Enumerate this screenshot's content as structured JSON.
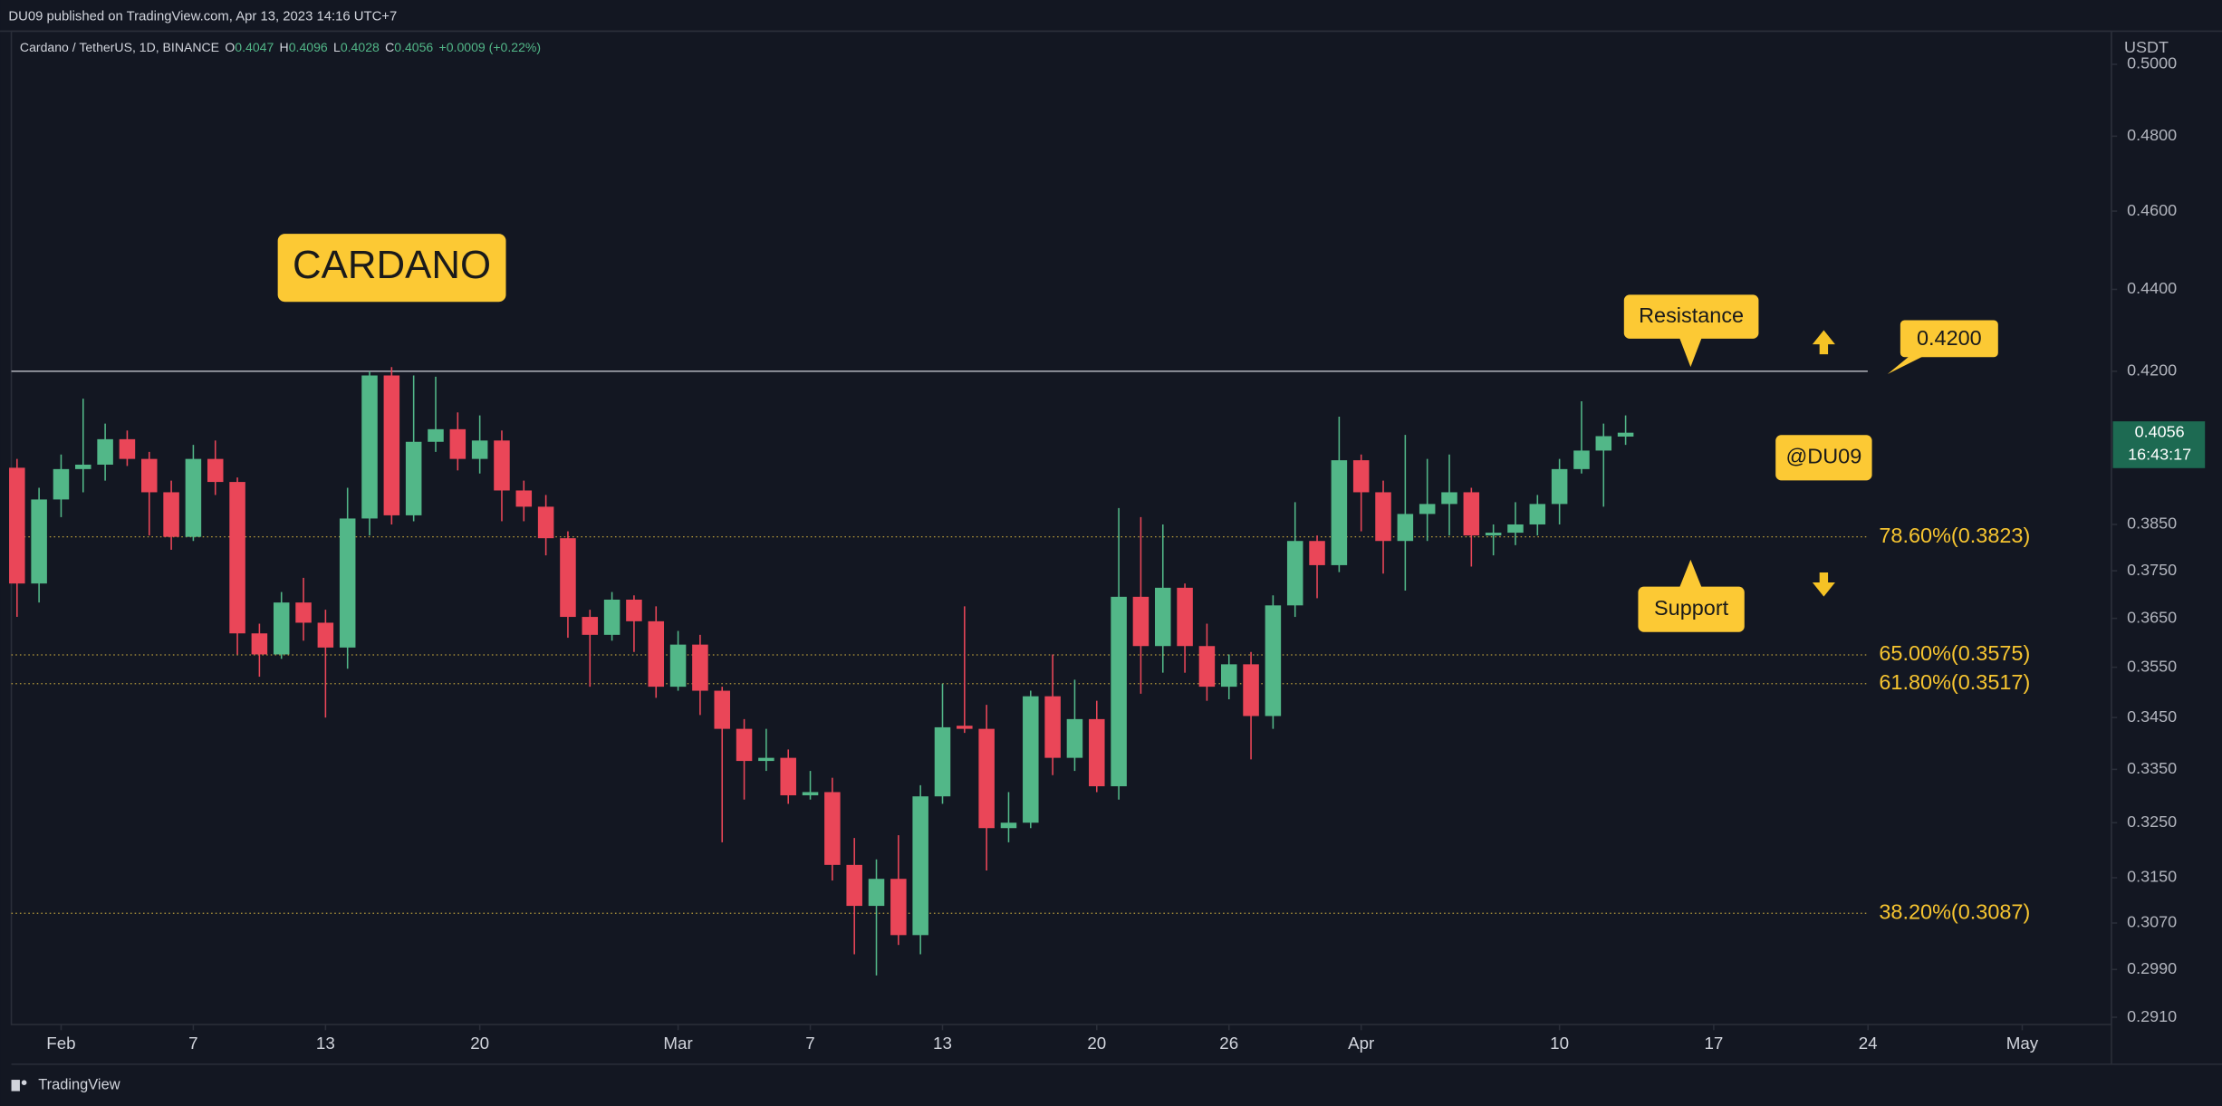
{
  "header": {
    "published": "DU09 published on TradingView.com, Apr 13, 2023 14:16 UTC+7",
    "brand": "TradingView"
  },
  "chart_data": {
    "type": "candlestick",
    "title": "CARDANO",
    "symbol": "Cardano / TetherUS, 1D, BINANCE",
    "ohlc_labels": [
      "O",
      "H",
      "L",
      "C"
    ],
    "change": "+0.0009 (+0.22%)",
    "countdown": "16:43:17",
    "y_unit": "USDT",
    "annotations": {
      "resistance": "Resistance",
      "support": "Support",
      "watermark": "@DU09"
    },
    "resistance": {
      "value": 0.42,
      "label": "0.4200"
    },
    "fib_levels": [
      {
        "value": 0.3823,
        "label": "78.60%(0.3823)"
      },
      {
        "value": 0.3575,
        "label": "65.00%(0.3575)"
      },
      {
        "value": 0.3517,
        "label": "61.80%(0.3517)"
      },
      {
        "value": 0.3087,
        "label": "38.20%(0.3087)"
      }
    ],
    "up_color": "#52b788",
    "down_color": "#ea4658",
    "log": true,
    "grid": false,
    "ylim": [
      0.2898,
      0.5095
    ],
    "yticks": [
      {
        "value": 0.5,
        "label": "0.5000"
      },
      {
        "value": 0.48,
        "label": "0.4800"
      },
      {
        "value": 0.46,
        "label": "0.4600"
      },
      {
        "value": 0.44,
        "label": "0.4400"
      },
      {
        "value": 0.42,
        "label": "0.4200"
      },
      {
        "value": 0.385,
        "label": "0.3850"
      },
      {
        "value": 0.375,
        "label": "0.3750"
      },
      {
        "value": 0.365,
        "label": "0.3650"
      },
      {
        "value": 0.355,
        "label": "0.3550"
      },
      {
        "value": 0.345,
        "label": "0.3450"
      },
      {
        "value": 0.335,
        "label": "0.3350"
      },
      {
        "value": 0.325,
        "label": "0.3250"
      },
      {
        "value": 0.315,
        "label": "0.3150"
      },
      {
        "value": 0.307,
        "label": "0.3070"
      },
      {
        "value": 0.299,
        "label": "0.2990"
      },
      {
        "value": 0.291,
        "label": "0.2910"
      }
    ],
    "xlim": [
      "2023-01-30",
      "2023-05-05"
    ],
    "xticks": [
      {
        "value": "2023-02-01",
        "label": "Feb"
      },
      {
        "value": "2023-02-07",
        "label": "7"
      },
      {
        "value": "2023-02-13",
        "label": "13"
      },
      {
        "value": "2023-02-20",
        "label": "20"
      },
      {
        "value": "2023-03-01",
        "label": "Mar"
      },
      {
        "value": "2023-03-07",
        "label": "7"
      },
      {
        "value": "2023-03-13",
        "label": "13"
      },
      {
        "value": "2023-03-20",
        "label": "20"
      },
      {
        "value": "2023-03-26",
        "label": "26"
      },
      {
        "value": "2023-04-01",
        "label": "Apr"
      },
      {
        "value": "2023-04-10",
        "label": "10"
      },
      {
        "value": "2023-04-17",
        "label": "17"
      },
      {
        "value": "2023-04-24",
        "label": "24"
      },
      {
        "value": "2023-05-01",
        "label": "May"
      }
    ],
    "x": [
      "2023-01-30",
      "2023-01-31",
      "2023-02-01",
      "2023-02-02",
      "2023-02-03",
      "2023-02-04",
      "2023-02-05",
      "2023-02-06",
      "2023-02-07",
      "2023-02-08",
      "2023-02-09",
      "2023-02-10",
      "2023-02-11",
      "2023-02-12",
      "2023-02-13",
      "2023-02-14",
      "2023-02-15",
      "2023-02-16",
      "2023-02-17",
      "2023-02-18",
      "2023-02-19",
      "2023-02-20",
      "2023-02-21",
      "2023-02-22",
      "2023-02-23",
      "2023-02-24",
      "2023-02-25",
      "2023-02-26",
      "2023-02-27",
      "2023-02-28",
      "2023-03-01",
      "2023-03-02",
      "2023-03-03",
      "2023-03-04",
      "2023-03-05",
      "2023-03-06",
      "2023-03-07",
      "2023-03-08",
      "2023-03-09",
      "2023-03-10",
      "2023-03-11",
      "2023-03-12",
      "2023-03-13",
      "2023-03-14",
      "2023-03-15",
      "2023-03-16",
      "2023-03-17",
      "2023-03-18",
      "2023-03-19",
      "2023-03-20",
      "2023-03-21",
      "2023-03-22",
      "2023-03-23",
      "2023-03-24",
      "2023-03-25",
      "2023-03-26",
      "2023-03-27",
      "2023-03-28",
      "2023-03-29",
      "2023-03-30",
      "2023-03-31",
      "2023-04-01",
      "2023-04-02",
      "2023-04-03",
      "2023-04-04",
      "2023-04-05",
      "2023-04-06",
      "2023-04-07",
      "2023-04-08",
      "2023-04-09",
      "2023-04-10",
      "2023-04-11",
      "2023-04-12",
      "2023-04-13"
    ],
    "open": [
      0.3976,
      0.3723,
      0.3905,
      0.3973,
      0.3983,
      0.4041,
      0.3996,
      0.3921,
      0.3823,
      0.3996,
      0.3944,
      0.3619,
      0.3576,
      0.3683,
      0.3641,
      0.359,
      0.3863,
      0.419,
      0.387,
      0.4035,
      0.4064,
      0.3996,
      0.4038,
      0.3925,
      0.3889,
      0.382,
      0.3653,
      0.3616,
      0.3689,
      0.3644,
      0.3511,
      0.3596,
      0.3503,
      0.3428,
      0.3366,
      0.3372,
      0.3301,
      0.3307,
      0.3173,
      0.31,
      0.3148,
      0.3049,
      0.3299,
      0.3434,
      0.3428,
      0.324,
      0.325,
      0.3492,
      0.3372,
      0.3447,
      0.3318,
      0.3695,
      0.3593,
      0.3714,
      0.3593,
      0.3511,
      0.3556,
      0.3453,
      0.3677,
      0.3814,
      0.3762,
      0.3993,
      0.3921,
      0.3814,
      0.3873,
      0.3895,
      0.3921,
      0.3826,
      0.3832,
      0.385,
      0.3895,
      0.3973,
      0.4015,
      0.4047
    ],
    "high": [
      0.3996,
      0.3931,
      0.4006,
      0.4135,
      0.4077,
      0.4061,
      0.4012,
      0.3947,
      0.4028,
      0.4038,
      0.3954,
      0.3639,
      0.3705,
      0.3735,
      0.3668,
      0.3931,
      0.42,
      0.421,
      0.419,
      0.4187,
      0.4103,
      0.4096,
      0.4061,
      0.3947,
      0.3915,
      0.3835,
      0.3668,
      0.3705,
      0.3698,
      0.3675,
      0.3624,
      0.3616,
      0.3511,
      0.3447,
      0.3428,
      0.3388,
      0.3347,
      0.3334,
      0.3222,
      0.3183,
      0.3227,
      0.332,
      0.3517,
      0.3675,
      0.3475,
      0.3307,
      0.3503,
      0.3576,
      0.3525,
      0.3483,
      0.3886,
      0.3866,
      0.385,
      0.3723,
      0.3639,
      0.3576,
      0.3581,
      0.3698,
      0.3899,
      0.3826,
      0.4093,
      0.4006,
      0.3947,
      0.4051,
      0.3996,
      0.4006,
      0.3931,
      0.385,
      0.3899,
      0.3915,
      0.3996,
      0.4129,
      0.4077,
      0.4096
    ],
    "low": [
      0.3653,
      0.3683,
      0.3866,
      0.3921,
      0.3947,
      0.398,
      0.3826,
      0.3795,
      0.3814,
      0.3915,
      0.3576,
      0.3531,
      0.3567,
      0.3604,
      0.345,
      0.3547,
      0.3826,
      0.385,
      0.3857,
      0.4012,
      0.397,
      0.3963,
      0.3857,
      0.3857,
      0.3783,
      0.361,
      0.3511,
      0.3604,
      0.3581,
      0.3489,
      0.3503,
      0.3455,
      0.3214,
      0.3293,
      0.3347,
      0.3285,
      0.3293,
      0.3145,
      0.3016,
      0.298,
      0.3032,
      0.3016,
      0.3285,
      0.342,
      0.3163,
      0.3214,
      0.324,
      0.3339,
      0.3347,
      0.3307,
      0.3293,
      0.3497,
      0.3539,
      0.3539,
      0.3483,
      0.3486,
      0.3369,
      0.3428,
      0.3653,
      0.3692,
      0.3747,
      0.3835,
      0.3744,
      0.3708,
      0.3814,
      0.3826,
      0.3759,
      0.3783,
      0.3805,
      0.3826,
      0.385,
      0.3963,
      0.3889,
      0.4028
    ],
    "close": [
      0.3723,
      0.3905,
      0.3973,
      0.3983,
      0.4041,
      0.3996,
      0.3921,
      0.3823,
      0.3996,
      0.3944,
      0.3619,
      0.3576,
      0.3683,
      0.3641,
      0.359,
      0.3863,
      0.419,
      0.387,
      0.4035,
      0.4064,
      0.3996,
      0.4038,
      0.3925,
      0.3889,
      0.382,
      0.3653,
      0.3616,
      0.3689,
      0.3644,
      0.3511,
      0.3596,
      0.3503,
      0.3428,
      0.3366,
      0.3372,
      0.3301,
      0.3307,
      0.3173,
      0.31,
      0.3148,
      0.3049,
      0.3299,
      0.3431,
      0.3428,
      0.324,
      0.325,
      0.3492,
      0.3372,
      0.3447,
      0.3318,
      0.3695,
      0.3593,
      0.3714,
      0.3593,
      0.3511,
      0.3556,
      0.3453,
      0.3677,
      0.3814,
      0.3762,
      0.3993,
      0.3921,
      0.3814,
      0.3873,
      0.3895,
      0.3921,
      0.3826,
      0.3832,
      0.385,
      0.3895,
      0.3973,
      0.4015,
      0.4048,
      0.4056
    ]
  }
}
